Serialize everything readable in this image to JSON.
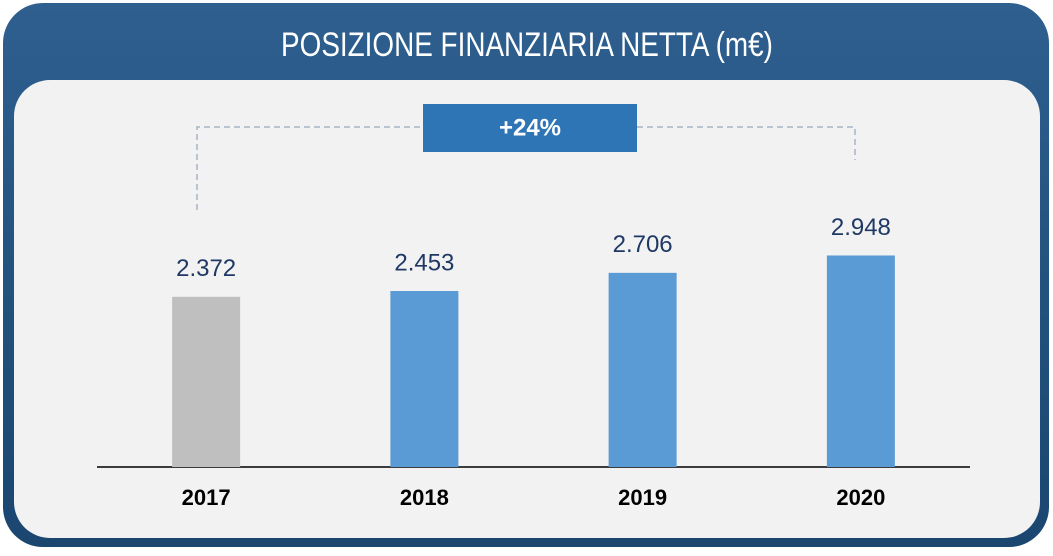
{
  "chart_data": {
    "type": "bar",
    "title": "POSIZIONE FINANZIARIA NETTA (m€)",
    "annotation": "+24%",
    "categories": [
      "2017",
      "2018",
      "2019",
      "2020"
    ],
    "values": [
      2372,
      2453,
      2706,
      2948
    ],
    "value_labels": [
      "2.372",
      "2.453",
      "2.706",
      "2.948"
    ],
    "colors": [
      "#bfbfbf",
      "#5b9bd5",
      "#5b9bd5",
      "#5b9bd5"
    ],
    "ylim": [
      0,
      4000
    ]
  }
}
